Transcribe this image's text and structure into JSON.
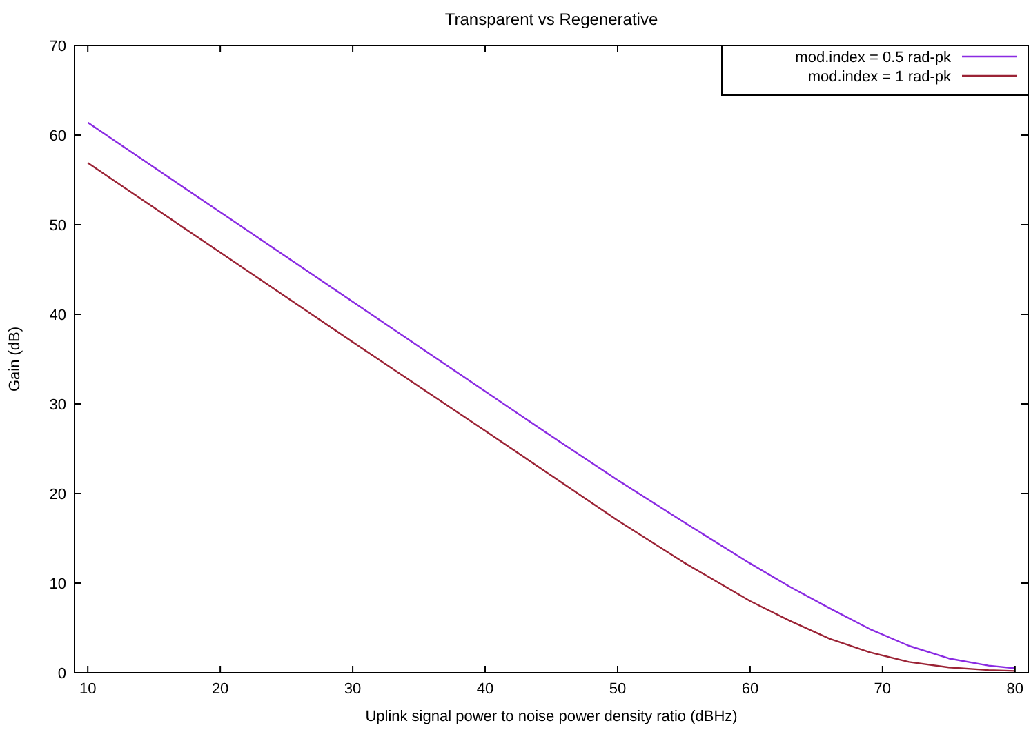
{
  "chart_data": {
    "type": "line",
    "title": "Transparent vs Regenerative",
    "xlabel": "Uplink signal power to noise power density ratio (dBHz)",
    "ylabel": "Gain (dB)",
    "xlim": [
      9,
      81
    ],
    "xticks": [
      10,
      20,
      30,
      40,
      50,
      60,
      70,
      80
    ],
    "ylim": [
      0,
      70
    ],
    "yticks": [
      0,
      10,
      20,
      30,
      40,
      50,
      60,
      70
    ],
    "grid": false,
    "legend": "top right",
    "marker": "none",
    "line_style": "solid",
    "x": [
      10,
      20,
      30,
      40,
      45,
      50,
      55,
      60,
      63,
      66,
      69,
      72,
      75,
      78,
      80
    ],
    "series": [
      {
        "name": "mod.index = 0.5 rad-pk",
        "color": "#8a2be2",
        "values": [
          61.4,
          51.4,
          41.4,
          31.4,
          26.4,
          21.5,
          16.8,
          12.2,
          9.6,
          7.2,
          4.9,
          3.0,
          1.6,
          0.8,
          0.5
        ]
      },
      {
        "name": "mod.index = 1 rad-pk",
        "color": "#9b2335",
        "values": [
          56.9,
          46.9,
          36.9,
          27.0,
          22.0,
          17.0,
          12.3,
          8.0,
          5.8,
          3.8,
          2.3,
          1.2,
          0.6,
          0.3,
          0.2
        ]
      }
    ]
  }
}
